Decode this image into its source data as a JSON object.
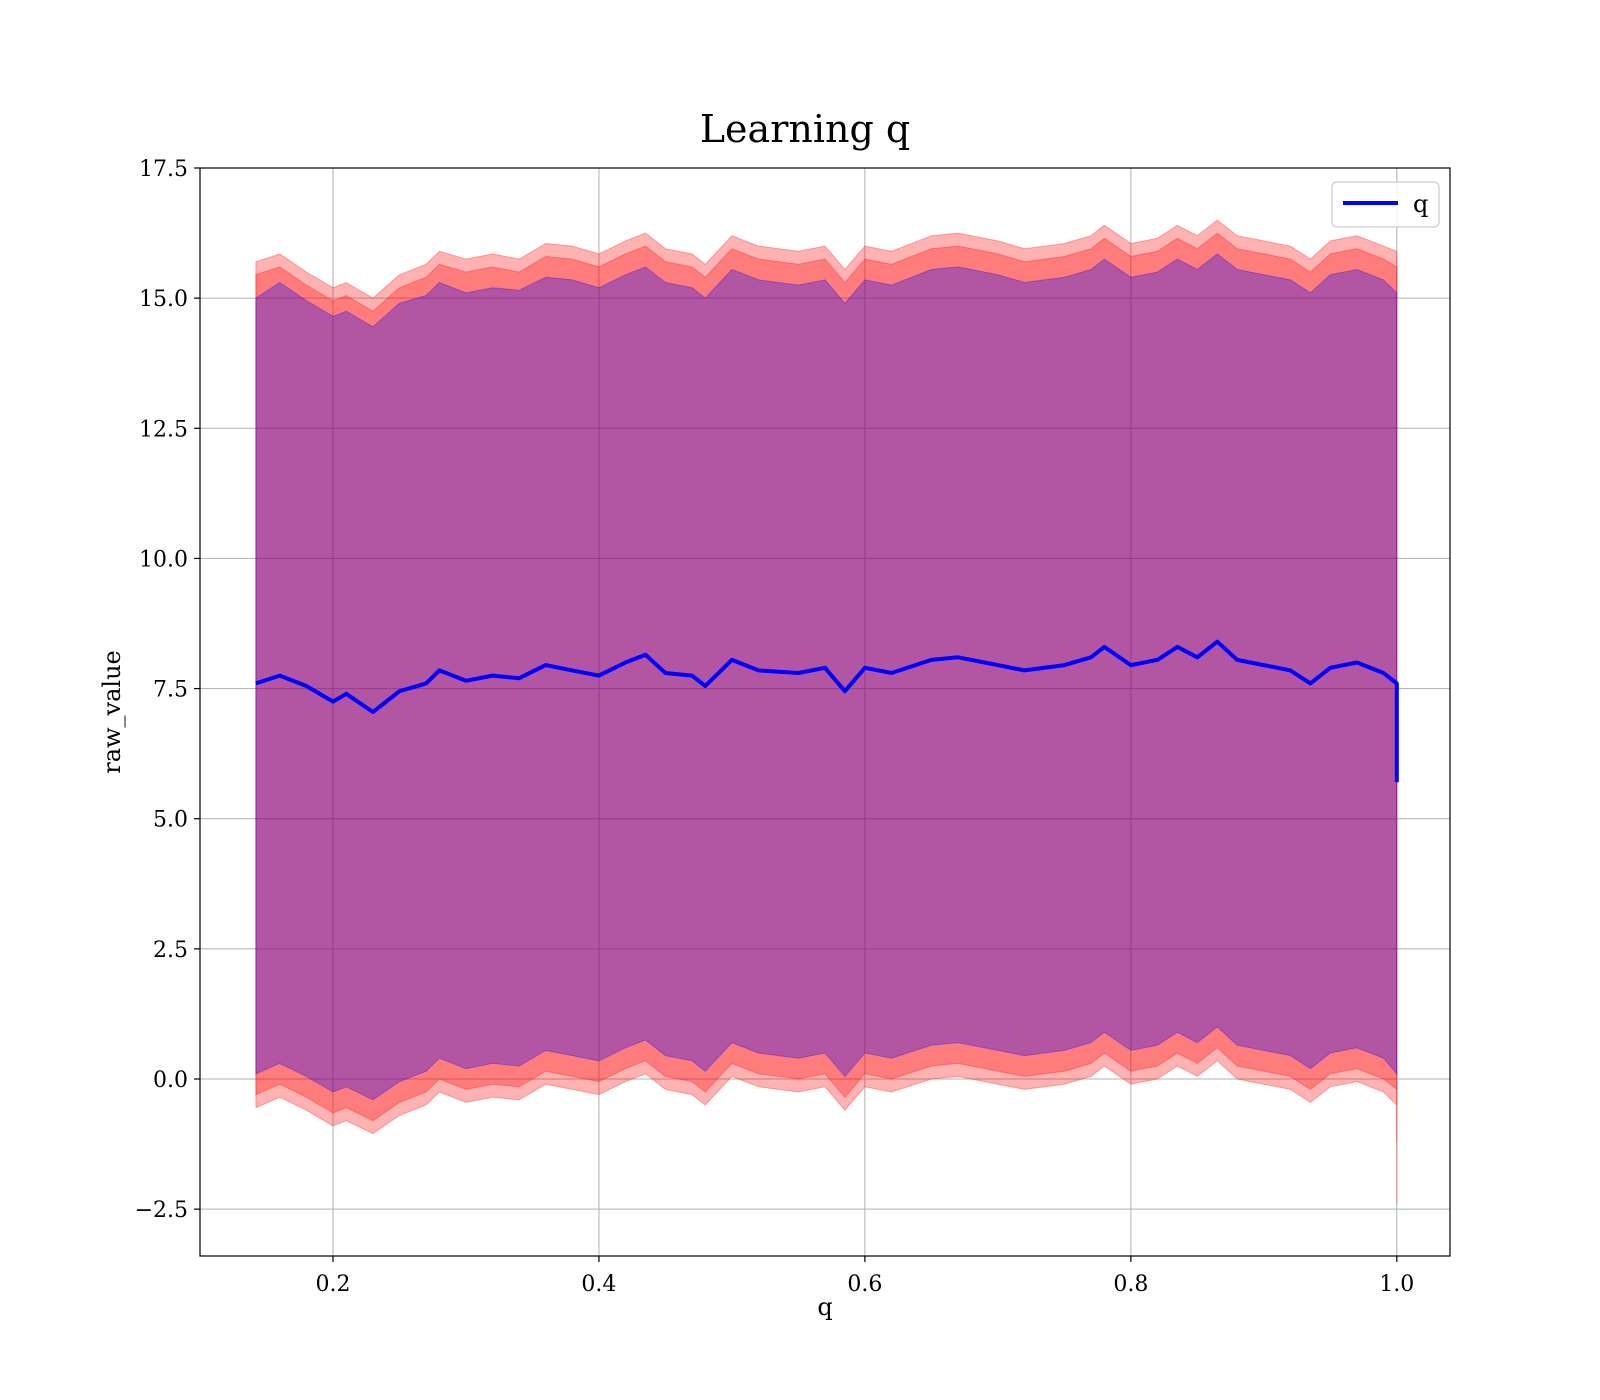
{
  "chart_data": {
    "type": "area",
    "title": "Learning q",
    "xlabel": "q",
    "ylabel": "raw_value",
    "xlim": [
      0.1,
      1.04
    ],
    "ylim": [
      -3.4,
      17.5
    ],
    "xticks": [
      0.2,
      0.4,
      0.6,
      0.8,
      1.0
    ],
    "xtick_labels": [
      "0.2",
      "0.4",
      "0.6",
      "0.8",
      "1.0"
    ],
    "yticks": [
      -2.5,
      0.0,
      2.5,
      5.0,
      7.5,
      10.0,
      12.5,
      15.0,
      17.5
    ],
    "ytick_labels": [
      "−2.5",
      "0.0",
      "2.5",
      "5.0",
      "7.5",
      "10.0",
      "12.5",
      "15.0",
      "17.5"
    ],
    "grid": true,
    "legend_position": "top-right",
    "x": [
      0.142,
      0.16,
      0.18,
      0.2,
      0.21,
      0.23,
      0.25,
      0.27,
      0.28,
      0.3,
      0.32,
      0.34,
      0.36,
      0.38,
      0.4,
      0.42,
      0.435,
      0.45,
      0.47,
      0.48,
      0.5,
      0.52,
      0.55,
      0.57,
      0.585,
      0.6,
      0.62,
      0.65,
      0.67,
      0.7,
      0.72,
      0.75,
      0.77,
      0.78,
      0.8,
      0.82,
      0.835,
      0.85,
      0.865,
      0.88,
      0.9,
      0.92,
      0.935,
      0.95,
      0.97,
      0.99,
      1.0,
      1.0
    ],
    "series": [
      {
        "name": "q",
        "color": "#0000ff",
        "values": [
          7.6,
          7.75,
          7.55,
          7.25,
          7.4,
          7.05,
          7.45,
          7.6,
          7.85,
          7.65,
          7.75,
          7.7,
          7.95,
          7.85,
          7.75,
          8.0,
          8.15,
          7.8,
          7.75,
          7.55,
          8.05,
          7.85,
          7.8,
          7.9,
          7.45,
          7.9,
          7.8,
          8.05,
          8.1,
          7.95,
          7.85,
          7.95,
          8.1,
          8.3,
          7.95,
          8.05,
          8.3,
          8.1,
          8.4,
          8.05,
          7.95,
          7.85,
          7.6,
          7.9,
          8.0,
          7.8,
          7.6,
          5.7
        ]
      }
    ],
    "bands": [
      {
        "color": "#ff0000",
        "opacity": 0.3,
        "upper": [
          15.7,
          15.85,
          15.5,
          15.2,
          15.3,
          15.0,
          15.45,
          15.65,
          15.9,
          15.75,
          15.85,
          15.75,
          16.05,
          16.0,
          15.85,
          16.1,
          16.25,
          15.95,
          15.85,
          15.65,
          16.2,
          16.0,
          15.9,
          16.0,
          15.55,
          16.0,
          15.9,
          16.2,
          16.25,
          16.1,
          15.95,
          16.05,
          16.2,
          16.4,
          16.05,
          16.15,
          16.4,
          16.2,
          16.5,
          16.2,
          16.1,
          16.0,
          15.75,
          16.1,
          16.2,
          16.0,
          15.9,
          15.9
        ],
        "lower": [
          -0.55,
          -0.35,
          -0.6,
          -0.9,
          -0.8,
          -1.05,
          -0.7,
          -0.5,
          -0.25,
          -0.45,
          -0.35,
          -0.4,
          -0.1,
          -0.2,
          -0.3,
          -0.05,
          0.1,
          -0.2,
          -0.3,
          -0.5,
          0.05,
          -0.15,
          -0.25,
          -0.15,
          -0.6,
          -0.15,
          -0.25,
          0.0,
          0.05,
          -0.1,
          -0.2,
          -0.1,
          0.05,
          0.25,
          -0.1,
          0.0,
          0.25,
          0.05,
          0.35,
          0.0,
          -0.1,
          -0.2,
          -0.45,
          -0.15,
          -0.05,
          -0.25,
          -0.5,
          -2.4
        ]
      },
      {
        "color": "#ff0000",
        "opacity": 0.3,
        "upper": [
          15.45,
          15.6,
          15.25,
          14.95,
          15.05,
          14.75,
          15.2,
          15.4,
          15.65,
          15.5,
          15.6,
          15.5,
          15.8,
          15.75,
          15.6,
          15.85,
          16.0,
          15.7,
          15.6,
          15.4,
          15.95,
          15.75,
          15.65,
          15.75,
          15.3,
          15.75,
          15.65,
          15.95,
          16.0,
          15.85,
          15.7,
          15.8,
          15.95,
          16.15,
          15.8,
          15.9,
          16.15,
          15.95,
          16.25,
          15.95,
          15.85,
          15.75,
          15.5,
          15.85,
          15.95,
          15.75,
          15.6,
          15.6
        ],
        "lower": [
          -0.3,
          -0.1,
          -0.35,
          -0.65,
          -0.55,
          -0.8,
          -0.45,
          -0.25,
          0.0,
          -0.2,
          -0.1,
          -0.15,
          0.15,
          0.05,
          -0.05,
          0.2,
          0.35,
          0.05,
          -0.05,
          -0.25,
          0.3,
          0.1,
          0.0,
          0.1,
          -0.35,
          0.1,
          0.0,
          0.25,
          0.3,
          0.15,
          0.05,
          0.15,
          0.3,
          0.5,
          0.15,
          0.25,
          0.5,
          0.3,
          0.6,
          0.25,
          0.15,
          0.05,
          -0.2,
          0.1,
          0.2,
          0.0,
          -0.2,
          -1.2
        ]
      },
      {
        "color": "#0000ff",
        "opacity": 0.3,
        "upper": [
          15.0,
          15.3,
          14.95,
          14.65,
          14.75,
          14.45,
          14.9,
          15.05,
          15.3,
          15.1,
          15.2,
          15.15,
          15.4,
          15.35,
          15.2,
          15.45,
          15.6,
          15.3,
          15.2,
          15.0,
          15.55,
          15.35,
          15.25,
          15.35,
          14.9,
          15.35,
          15.25,
          15.55,
          15.6,
          15.45,
          15.3,
          15.4,
          15.55,
          15.75,
          15.4,
          15.5,
          15.75,
          15.55,
          15.85,
          15.55,
          15.45,
          15.35,
          15.1,
          15.45,
          15.55,
          15.35,
          15.1,
          15.1
        ],
        "lower": [
          0.1,
          0.3,
          0.05,
          -0.25,
          -0.15,
          -0.4,
          -0.05,
          0.15,
          0.4,
          0.2,
          0.3,
          0.25,
          0.55,
          0.45,
          0.35,
          0.6,
          0.75,
          0.45,
          0.35,
          0.15,
          0.7,
          0.5,
          0.4,
          0.5,
          0.05,
          0.5,
          0.4,
          0.65,
          0.7,
          0.55,
          0.45,
          0.55,
          0.7,
          0.9,
          0.55,
          0.65,
          0.9,
          0.7,
          1.0,
          0.65,
          0.55,
          0.45,
          0.2,
          0.5,
          0.6,
          0.4,
          0.1,
          0.1
        ]
      }
    ]
  }
}
